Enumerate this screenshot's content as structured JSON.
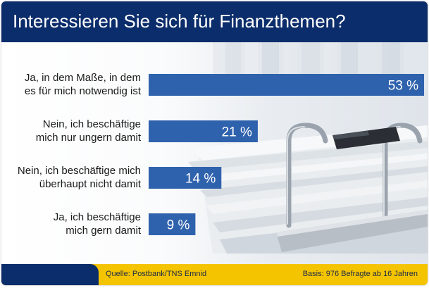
{
  "title": "Interessieren Sie sich für Finanzthemen?",
  "chart_data": {
    "type": "bar",
    "orientation": "horizontal",
    "categories": [
      [
        "Ja, in dem Maße, in dem",
        "es für mich notwendig ist"
      ],
      [
        "Nein, ich beschäftige",
        "mich nur ungern damit"
      ],
      [
        "Nein, ich beschäftige mich",
        "überhaupt nicht damit"
      ],
      [
        "Ja, ich beschäftige",
        "mich gern damit"
      ]
    ],
    "values": [
      53,
      21,
      14,
      9
    ],
    "value_labels": [
      "53 %",
      "21 %",
      "14 %",
      "9 %"
    ],
    "unit": "%",
    "xlim": [
      0,
      53
    ],
    "bar_color": "#2f62ad",
    "grid": false
  },
  "footer": {
    "source": "Quelle: Postbank/TNS Emnid",
    "basis": "Basis: 976 Befragte ab 16 Jahren"
  },
  "colors": {
    "header": "#0c2d6b",
    "footer_bar": "#f5c400",
    "bar": "#2f62ad"
  }
}
